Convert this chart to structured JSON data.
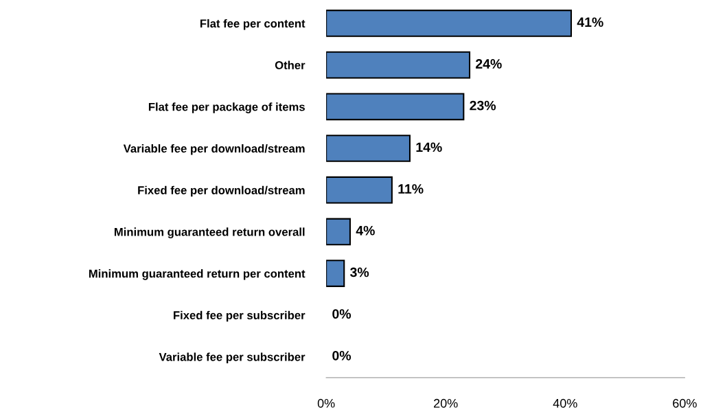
{
  "chart_data": {
    "type": "bar",
    "orientation": "horizontal",
    "categories": [
      "Flat fee per content",
      "Other",
      "Flat fee per package of items",
      "Variable fee per download/stream",
      "Fixed fee per download/stream",
      "Minimum guaranteed return overall",
      "Minimum guaranteed return per content",
      "Fixed fee per subscriber",
      "Variable fee per subscriber"
    ],
    "values": [
      41,
      24,
      23,
      14,
      11,
      4,
      3,
      0,
      0
    ],
    "value_labels": [
      "41%",
      "24%",
      "23%",
      "14%",
      "11%",
      "4%",
      "3%",
      "0%",
      "0%"
    ],
    "color": "#4f81bd",
    "xlim": [
      0,
      60
    ],
    "xticks": [
      {
        "value": 0,
        "label": "0%"
      },
      {
        "value": 20,
        "label": "20%"
      },
      {
        "value": 40,
        "label": "40%"
      },
      {
        "value": 60,
        "label": "60%"
      }
    ],
    "grid": false,
    "legend": false
  }
}
